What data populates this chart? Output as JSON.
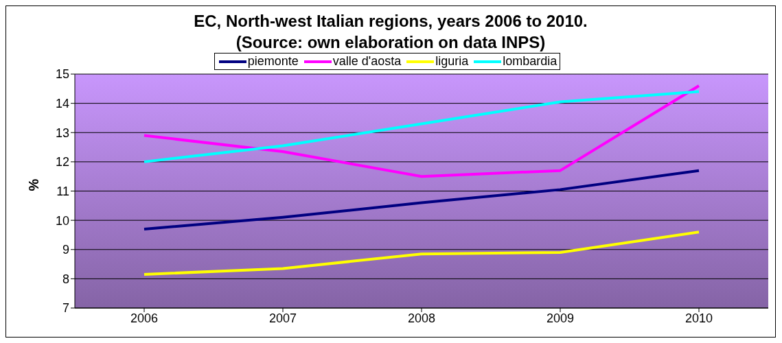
{
  "chart_data": {
    "type": "line",
    "title": "EC, North-west Italian regions, years 2006 to 2010.",
    "subtitle": "(Source: own elaboration on data INPS)",
    "ylabel": "%",
    "categories": [
      "2006",
      "2007",
      "2008",
      "2009",
      "2010"
    ],
    "ylim": [
      7,
      15
    ],
    "yticks": [
      7,
      8,
      9,
      10,
      11,
      12,
      13,
      14,
      15
    ],
    "grid": "y",
    "legend": "top",
    "series": [
      {
        "name": "piemonte",
        "color": "#000080",
        "values": [
          9.7,
          10.1,
          10.6,
          11.05,
          11.7
        ]
      },
      {
        "name": "valle d'aosta",
        "color": "#ff00ff",
        "values": [
          12.9,
          12.35,
          11.5,
          11.7,
          14.6
        ]
      },
      {
        "name": "liguria",
        "color": "#ffff00",
        "values": [
          8.15,
          8.35,
          8.85,
          8.9,
          9.6
        ]
      },
      {
        "name": "lombardia",
        "color": "#00ffff",
        "values": [
          12.0,
          12.55,
          13.3,
          14.05,
          14.4
        ]
      }
    ]
  }
}
